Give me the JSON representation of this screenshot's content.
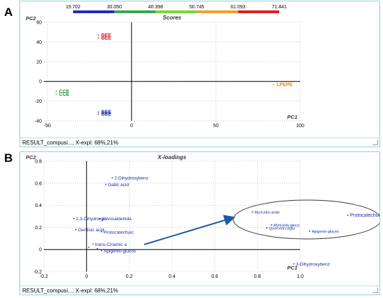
{
  "panels": [
    {
      "letter": "A",
      "status_text": "RESULT_compusi..., X-expl: 68%,21%",
      "colorbar": {
        "ticks": [
          "19.702",
          "30.050",
          "40.398",
          "50.745",
          "61.093",
          "71.441"
        ],
        "colors": [
          "#1f2fb8",
          "#3aa84c",
          "#7ad43a",
          "#f0a030",
          "#e02020"
        ]
      }
    },
    {
      "letter": "B",
      "status_text": "RESULT_compusi..., X-expl: 68%,21%"
    }
  ],
  "chart_data": [
    {
      "type": "scatter",
      "title": "Scores",
      "xlabel": "PC1",
      "ylabel": "PC2",
      "xlim": [
        -52,
        100
      ],
      "ylim": [
        -40,
        60
      ],
      "xticks": [
        -50,
        0,
        50,
        100
      ],
      "yticks": [
        -40,
        -20,
        0,
        20,
        40,
        60
      ],
      "grid": true,
      "points": [
        {
          "label": "BEE",
          "x": -18,
          "y": 47,
          "color": "#d42020"
        },
        {
          "label": "BEE",
          "x": -18,
          "y": 44,
          "color": "#d42020"
        },
        {
          "label": "CCE",
          "x": -43,
          "y": -10,
          "color": "#2a9a3a"
        },
        {
          "label": "CCE",
          "x": -43,
          "y": -13,
          "color": "#2a9a3a"
        },
        {
          "label": "BEE",
          "x": -18,
          "y": -31,
          "color": "#2030c0"
        },
        {
          "label": "BEE",
          "x": -18,
          "y": -33,
          "color": "#2030c0"
        },
        {
          "label": "LPEPE",
          "x": 86,
          "y": -3,
          "color": "#e08a20"
        }
      ]
    },
    {
      "type": "scatter",
      "title": "X-loadings",
      "xlabel": "PC1",
      "ylabel": "PC2",
      "xlim": [
        -0.2,
        1.0
      ],
      "ylim": [
        -0.2,
        0.8
      ],
      "xticks": [
        -0.2,
        0,
        0.2,
        0.4,
        0.6,
        0.8,
        1.0
      ],
      "yticks": [
        -0.2,
        0,
        0.2,
        0.4,
        0.6,
        0.8
      ],
      "grid": true,
      "points": [
        {
          "label": "2-Dihydroxybenz",
          "x": 0.13,
          "y": 0.65
        },
        {
          "label": "Gallic acid",
          "x": 0.1,
          "y": 0.59
        },
        {
          "label": "2,3-Dihydroxyb",
          "x": -0.05,
          "y": 0.28
        },
        {
          "label": "p-Anisaldehida",
          "x": 0.07,
          "y": 0.28
        },
        {
          "label": "Gentisic acid",
          "x": -0.04,
          "y": 0.18
        },
        {
          "label": "Protocatechuic",
          "x": 0.08,
          "y": 0.16
        },
        {
          "label": "trans-Cinamic a",
          "x": 0.04,
          "y": 0.05
        },
        {
          "label": "",
          "x": 0.02,
          "y": 0.02
        },
        {
          "label": "",
          "x": 0.06,
          "y": 0.01
        },
        {
          "label": "Apigenin-glucos",
          "x": 0.08,
          "y": -0.01
        },
        {
          "label": "3-Dihydroxybenz",
          "x": 0.98,
          "y": -0.13
        }
      ],
      "annotation": "zoomed region",
      "zoom_points": [
        {
          "label": "Myricetin-arabi",
          "x": 0.75,
          "y": 0.34
        },
        {
          "label": "Protocatechuic",
          "x": 0.95,
          "y": 0.32
        },
        {
          "label": "Myricetin-gluco",
          "x": 0.79,
          "y": 0.26
        },
        {
          "label": "Quercetin-diglu",
          "x": 0.78,
          "y": 0.24
        },
        {
          "label": "Apigenin-gluces",
          "x": 0.87,
          "y": 0.22
        }
      ]
    }
  ]
}
